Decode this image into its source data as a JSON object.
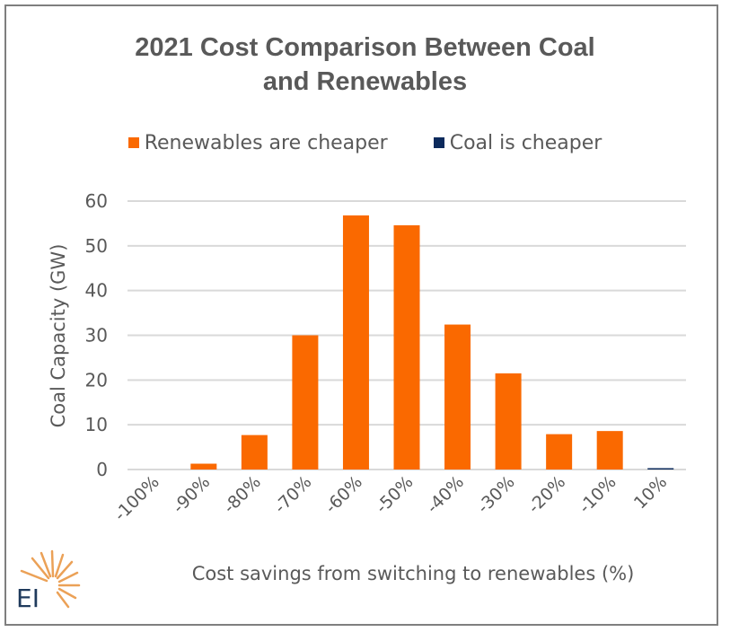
{
  "title_lines": [
    "2021 Cost Comparison Between Coal",
    "and Renewables"
  ],
  "logo_text": "EI",
  "colors": {
    "renewables": "#fa6900",
    "coal": "#0c2a5c",
    "grid": "#d9d9d9",
    "text": "#595959"
  },
  "chart_data": {
    "type": "bar",
    "title": "2021 Cost Comparison Between Coal and Renewables",
    "xlabel": "Cost savings from switching to renewables (%)",
    "ylabel": "Coal Capacity (GW)",
    "ylim": [
      0,
      60
    ],
    "yticks": [
      "0",
      "10",
      "20",
      "30",
      "40",
      "50",
      "60"
    ],
    "grid": true,
    "legend_position": "top",
    "categories": [
      "-100%",
      "-90%",
      "-80%",
      "-70%",
      "-60%",
      "-50%",
      "-40%",
      "-30%",
      "-20%",
      "-10%",
      "10%"
    ],
    "series": [
      {
        "name": "Renewables are cheaper",
        "color": "#fa6900",
        "values": [
          0,
          1.3,
          7.7,
          30.0,
          56.8,
          54.6,
          32.4,
          21.5,
          7.9,
          8.6,
          0
        ]
      },
      {
        "name": "Coal is cheaper",
        "color": "#0c2a5c",
        "values": [
          0,
          0,
          0,
          0,
          0,
          0,
          0,
          0,
          0,
          0,
          0.3
        ]
      }
    ]
  }
}
